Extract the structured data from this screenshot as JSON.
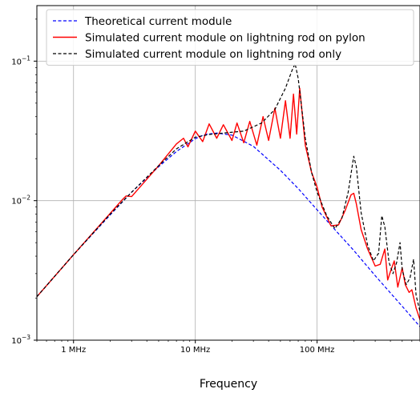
{
  "chart_data": {
    "type": "line",
    "title": "",
    "xlabel": "Frequency",
    "ylabel": "",
    "x_scale": "log",
    "y_scale": "log",
    "xlim": [
      500000,
      700000000
    ],
    "ylim": [
      0.001,
      0.25
    ],
    "grid": true,
    "legend_position": "top-center",
    "x_ticks": [
      {
        "value": 1000000,
        "label": "1 MHz"
      },
      {
        "value": 10000000,
        "label": "10 MHz"
      },
      {
        "value": 100000000,
        "label": "100 MHz"
      }
    ],
    "y_ticks": [
      {
        "value": 0.001,
        "base": "10",
        "exp": "−3"
      },
      {
        "value": 0.01,
        "base": "10",
        "exp": "−2"
      },
      {
        "value": 0.1,
        "base": "10",
        "exp": "−1"
      }
    ],
    "series": [
      {
        "name": "Theoretical current module",
        "color": "#0000ff",
        "dash": "dashed",
        "x": [
          500000,
          1000000,
          2000000,
          3000000,
          5000000,
          7000000,
          10000000,
          12000000,
          15000000,
          20000000,
          30000000,
          50000000,
          70000000,
          100000000,
          150000000,
          200000000,
          300000000,
          500000000,
          700000000
        ],
        "y": [
          0.00205,
          0.0041,
          0.0079,
          0.0115,
          0.0175,
          0.0225,
          0.0278,
          0.0298,
          0.0305,
          0.0295,
          0.0245,
          0.0165,
          0.0122,
          0.0086,
          0.0058,
          0.0044,
          0.0029,
          0.00175,
          0.00125
        ]
      },
      {
        "name": "Simulated current module on lightning rod on pylon",
        "color": "#ff0000",
        "dash": "solid",
        "x": [
          500000,
          1000000,
          2000000,
          2500000,
          2700000,
          3000000,
          5000000,
          7000000,
          8000000,
          8700000,
          10000000,
          11500000,
          13000000,
          15000000,
          17000000,
          20000000,
          22000000,
          25000000,
          28000000,
          32000000,
          36000000,
          40000000,
          45000000,
          50000000,
          55000000,
          60000000,
          64000000,
          68000000,
          72000000,
          80000000,
          90000000,
          100000000,
          110000000,
          130000000,
          150000000,
          170000000,
          190000000,
          200000000,
          210000000,
          230000000,
          260000000,
          300000000,
          330000000,
          360000000,
          380000000,
          400000000,
          430000000,
          460000000,
          500000000,
          530000000,
          570000000,
          600000000,
          650000000,
          700000000
        ],
        "y": [
          0.00205,
          0.0041,
          0.0081,
          0.0101,
          0.0108,
          0.0107,
          0.0178,
          0.0255,
          0.028,
          0.0243,
          0.0315,
          0.0265,
          0.0355,
          0.028,
          0.035,
          0.027,
          0.036,
          0.026,
          0.037,
          0.025,
          0.04,
          0.027,
          0.046,
          0.028,
          0.052,
          0.028,
          0.058,
          0.03,
          0.064,
          0.025,
          0.016,
          0.0125,
          0.009,
          0.0066,
          0.0067,
          0.0085,
          0.011,
          0.0113,
          0.0095,
          0.0062,
          0.0045,
          0.0034,
          0.0035,
          0.0045,
          0.0027,
          0.0031,
          0.0037,
          0.0024,
          0.0033,
          0.0025,
          0.0022,
          0.0023,
          0.0017,
          0.0014
        ]
      },
      {
        "name": "Simulated current module on lightning rod only",
        "color": "#000000",
        "dash": "dashed",
        "x": [
          500000,
          1000000,
          2000000,
          3000000,
          5000000,
          7000000,
          10000000,
          13000000,
          17000000,
          25000000,
          35000000,
          45000000,
          55000000,
          62000000,
          66000000,
          70000000,
          80000000,
          90000000,
          100000000,
          120000000,
          140000000,
          160000000,
          180000000,
          200000000,
          210000000,
          230000000,
          260000000,
          290000000,
          320000000,
          340000000,
          360000000,
          390000000,
          420000000,
          450000000,
          480000000,
          500000000,
          540000000,
          580000000,
          620000000,
          650000000,
          700000000
        ],
        "y": [
          0.00205,
          0.0041,
          0.008,
          0.0115,
          0.0178,
          0.0235,
          0.0285,
          0.0298,
          0.0305,
          0.0315,
          0.036,
          0.045,
          0.064,
          0.085,
          0.096,
          0.075,
          0.028,
          0.016,
          0.0115,
          0.0078,
          0.0063,
          0.0075,
          0.0115,
          0.0208,
          0.0175,
          0.0082,
          0.0048,
          0.0037,
          0.0042,
          0.0078,
          0.0065,
          0.0036,
          0.003,
          0.0036,
          0.005,
          0.0032,
          0.0025,
          0.0028,
          0.0038,
          0.0021,
          0.0016
        ]
      }
    ]
  }
}
